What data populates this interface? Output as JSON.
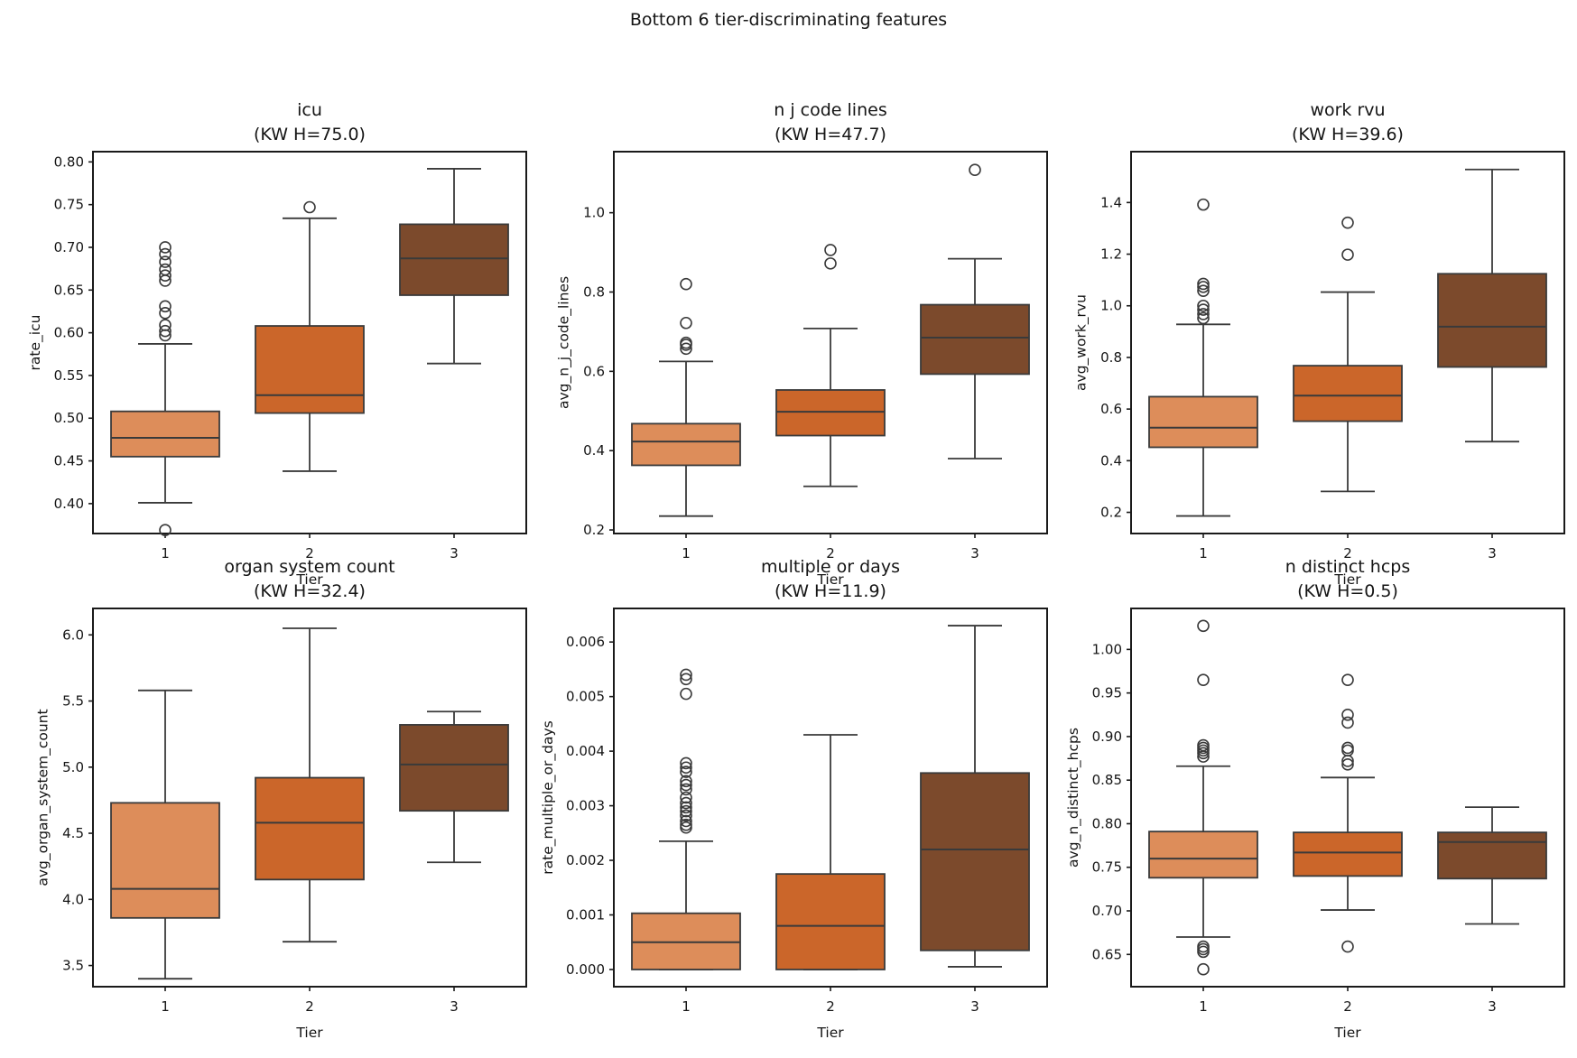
{
  "figure": {
    "suptitle": "Bottom 6 tier-discriminating features",
    "background": "#ffffff"
  },
  "palette": {
    "tier_colors": [
      "#dd8d5a",
      "#cb662a",
      "#7c4a2c"
    ],
    "box_edge": "#3a3a3a",
    "spine": "#1a1a1a",
    "text": "#151515"
  },
  "x_axis": {
    "label": "Tier",
    "categories": [
      "1",
      "2",
      "3"
    ]
  },
  "chart_data": [
    {
      "type": "box",
      "title": "icu",
      "subtitle": "(KW H=75.0)",
      "xlabel": "Tier",
      "ylabel": "rate_icu",
      "categories": [
        "1",
        "2",
        "3"
      ],
      "ylim": [
        0.365,
        0.812
      ],
      "yticks": {
        "values": [
          0.4,
          0.45,
          0.5,
          0.55,
          0.6,
          0.65,
          0.7,
          0.75,
          0.8
        ],
        "labels": [
          "0.40",
          "0.45",
          "0.50",
          "0.55",
          "0.60",
          "0.65",
          "0.70",
          "0.75",
          "0.80"
        ]
      },
      "boxes": [
        {
          "category": "1",
          "whisker_low": 0.401,
          "q1": 0.455,
          "median": 0.477,
          "q3": 0.508,
          "whisker_high": 0.587,
          "outliers": [
            0.369,
            0.597,
            0.602,
            0.609,
            0.623,
            0.631,
            0.661,
            0.667,
            0.674,
            0.683,
            0.692,
            0.7
          ]
        },
        {
          "category": "2",
          "whisker_low": 0.438,
          "q1": 0.506,
          "median": 0.527,
          "q3": 0.608,
          "whisker_high": 0.734,
          "outliers": [
            0.747
          ]
        },
        {
          "category": "3",
          "whisker_low": 0.564,
          "q1": 0.644,
          "median": 0.687,
          "q3": 0.727,
          "whisker_high": 0.792,
          "outliers": []
        }
      ]
    },
    {
      "type": "box",
      "title": "n j code lines",
      "subtitle": "(KW H=47.7)",
      "xlabel": "Tier",
      "ylabel": "avg_n_j_code_lines",
      "categories": [
        "1",
        "2",
        "3"
      ],
      "ylim": [
        0.191,
        1.154
      ],
      "yticks": {
        "values": [
          0.2,
          0.4,
          0.6,
          0.8,
          1.0
        ],
        "labels": [
          "0.2",
          "0.4",
          "0.6",
          "0.8",
          "1.0"
        ]
      },
      "boxes": [
        {
          "category": "1",
          "whisker_low": 0.235,
          "q1": 0.363,
          "median": 0.423,
          "q3": 0.468,
          "whisker_high": 0.625,
          "outliers": [
            0.657,
            0.667,
            0.672,
            0.722,
            0.82
          ]
        },
        {
          "category": "2",
          "whisker_low": 0.31,
          "q1": 0.438,
          "median": 0.498,
          "q3": 0.553,
          "whisker_high": 0.708,
          "outliers": [
            0.872,
            0.906
          ]
        },
        {
          "category": "3",
          "whisker_low": 0.38,
          "q1": 0.593,
          "median": 0.685,
          "q3": 0.768,
          "whisker_high": 0.884,
          "outliers": [
            1.108
          ]
        }
      ]
    },
    {
      "type": "box",
      "title": "work rvu",
      "subtitle": "(KW H=39.6)",
      "xlabel": "Tier",
      "ylabel": "avg_work_rvu",
      "categories": [
        "1",
        "2",
        "3"
      ],
      "ylim": [
        0.118,
        1.597
      ],
      "yticks": {
        "values": [
          0.2,
          0.4,
          0.6,
          0.8,
          1.0,
          1.2,
          1.4
        ],
        "labels": [
          "0.2",
          "0.4",
          "0.6",
          "0.8",
          "1.0",
          "1.2",
          "1.4"
        ]
      },
      "boxes": [
        {
          "category": "1",
          "whisker_low": 0.186,
          "q1": 0.452,
          "median": 0.528,
          "q3": 0.648,
          "whisker_high": 0.928,
          "outliers": [
            0.952,
            0.968,
            0.985,
            1.0,
            1.058,
            1.073,
            1.085,
            1.392
          ]
        },
        {
          "category": "2",
          "whisker_low": 0.281,
          "q1": 0.553,
          "median": 0.652,
          "q3": 0.768,
          "whisker_high": 1.053,
          "outliers": [
            1.198,
            1.322
          ]
        },
        {
          "category": "3",
          "whisker_low": 0.474,
          "q1": 0.763,
          "median": 0.919,
          "q3": 1.124,
          "whisker_high": 1.528,
          "outliers": []
        }
      ]
    },
    {
      "type": "box",
      "title": "organ system count",
      "subtitle": "(KW H=32.4)",
      "xlabel": "Tier",
      "ylabel": "avg_organ_system_count",
      "categories": [
        "1",
        "2",
        "3"
      ],
      "ylim": [
        3.34,
        6.2
      ],
      "yticks": {
        "values": [
          3.5,
          4.0,
          4.5,
          5.0,
          5.5,
          6.0
        ],
        "labels": [
          "3.5",
          "4.0",
          "4.5",
          "5.0",
          "5.5",
          "6.0"
        ]
      },
      "boxes": [
        {
          "category": "1",
          "whisker_low": 3.4,
          "q1": 3.86,
          "median": 4.08,
          "q3": 4.73,
          "whisker_high": 5.58,
          "outliers": []
        },
        {
          "category": "2",
          "whisker_low": 3.68,
          "q1": 4.15,
          "median": 4.58,
          "q3": 4.92,
          "whisker_high": 6.05,
          "outliers": []
        },
        {
          "category": "3",
          "whisker_low": 4.28,
          "q1": 4.67,
          "median": 5.02,
          "q3": 5.32,
          "whisker_high": 5.42,
          "outliers": []
        }
      ]
    },
    {
      "type": "box",
      "title": "multiple or days",
      "subtitle": "(KW H=11.9)",
      "xlabel": "Tier",
      "ylabel": "rate_multiple_or_days",
      "categories": [
        "1",
        "2",
        "3"
      ],
      "ylim": [
        -0.000315,
        0.006615
      ],
      "yticks": {
        "values": [
          0.0,
          0.001,
          0.002,
          0.003,
          0.004,
          0.005,
          0.006
        ],
        "labels": [
          "0.000",
          "0.001",
          "0.002",
          "0.003",
          "0.004",
          "0.005",
          "0.006"
        ]
      },
      "boxes": [
        {
          "category": "1",
          "whisker_low": 0.0,
          "q1": 0.0,
          "median": 0.0005,
          "q3": 0.00103,
          "whisker_high": 0.00235,
          "outliers": [
            0.0026,
            0.00265,
            0.00272,
            0.00282,
            0.0029,
            0.00297,
            0.00305,
            0.00315,
            0.0033,
            0.00338,
            0.00345,
            0.00362,
            0.0037,
            0.00378,
            0.00505,
            0.00532,
            0.0054
          ]
        },
        {
          "category": "2",
          "whisker_low": 0.0,
          "q1": 0.0,
          "median": 0.0008,
          "q3": 0.00175,
          "whisker_high": 0.0043,
          "outliers": []
        },
        {
          "category": "3",
          "whisker_low": 5e-05,
          "q1": 0.00035,
          "median": 0.0022,
          "q3": 0.0036,
          "whisker_high": 0.0063,
          "outliers": []
        }
      ]
    },
    {
      "type": "box",
      "title": "n distinct hcps",
      "subtitle": "(KW H=0.5)",
      "xlabel": "Tier",
      "ylabel": "avg_n_distinct_hcps",
      "categories": [
        "1",
        "2",
        "3"
      ],
      "ylim": [
        0.613,
        1.047
      ],
      "yticks": {
        "values": [
          0.65,
          0.7,
          0.75,
          0.8,
          0.85,
          0.9,
          0.95,
          1.0
        ],
        "labels": [
          "0.65",
          "0.70",
          "0.75",
          "0.80",
          "0.85",
          "0.90",
          "0.95",
          "1.00"
        ]
      },
      "boxes": [
        {
          "category": "1",
          "whisker_low": 0.67,
          "q1": 0.738,
          "median": 0.76,
          "q3": 0.791,
          "whisker_high": 0.866,
          "outliers": [
            0.633,
            0.653,
            0.656,
            0.659,
            0.877,
            0.881,
            0.884,
            0.887,
            0.89,
            0.965,
            1.027
          ]
        },
        {
          "category": "2",
          "whisker_low": 0.701,
          "q1": 0.74,
          "median": 0.767,
          "q3": 0.79,
          "whisker_high": 0.853,
          "outliers": [
            0.659,
            0.868,
            0.872,
            0.884,
            0.887,
            0.916,
            0.925,
            0.965
          ]
        },
        {
          "category": "3",
          "whisker_low": 0.685,
          "q1": 0.737,
          "median": 0.779,
          "q3": 0.79,
          "whisker_high": 0.819,
          "outliers": []
        }
      ]
    }
  ]
}
